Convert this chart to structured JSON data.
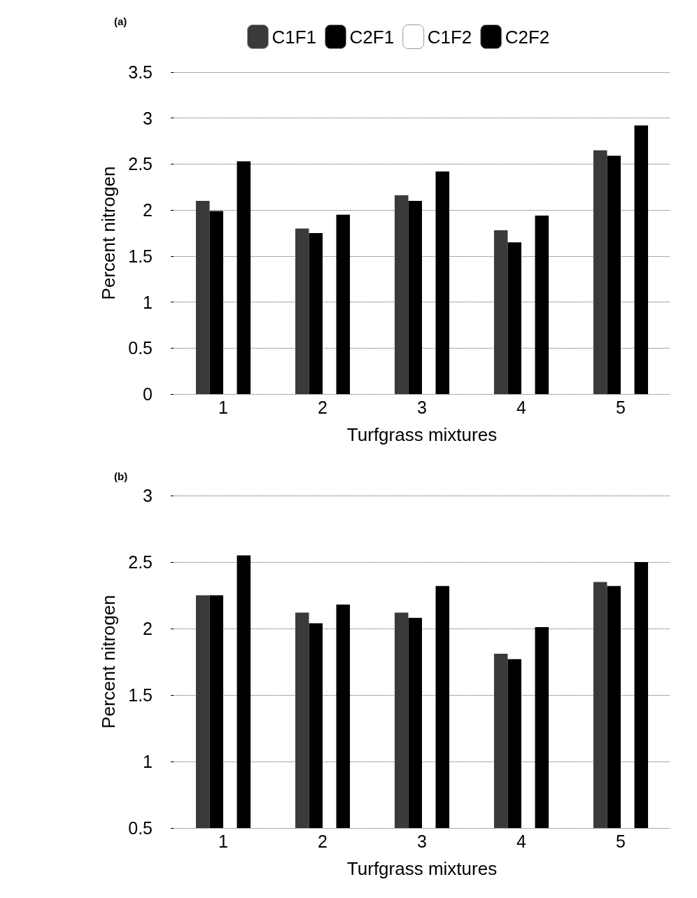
{
  "chart_data": [
    {
      "type": "bar",
      "title": "(a)",
      "xlabel": "Turfgrass mixtures",
      "ylabel": "Percent nitrogen",
      "categories": [
        "1",
        "2",
        "3",
        "4",
        "5"
      ],
      "series": [
        {
          "name": "C1F1",
          "color": "#3a3a3a",
          "values": [
            2.1,
            1.8,
            2.16,
            1.78,
            2.65
          ]
        },
        {
          "name": "C2F1",
          "color": "#000000",
          "values": [
            1.99,
            1.75,
            2.1,
            1.65,
            2.59
          ]
        },
        {
          "name": "C1F2",
          "color": "#ffffff",
          "values": [
            null,
            null,
            null,
            null,
            null
          ]
        },
        {
          "name": "C2F2",
          "color": "#000000",
          "values": [
            2.53,
            1.95,
            2.42,
            1.94,
            2.92
          ]
        }
      ],
      "ylim": [
        0,
        3.5
      ],
      "yticks": [
        0,
        0.5,
        1,
        1.5,
        2,
        2.5,
        3,
        3.5
      ],
      "grid": "y",
      "legend": "top"
    },
    {
      "type": "bar",
      "title": "(b)",
      "xlabel": "Turfgrass mixtures",
      "ylabel": "Percent nitrogen",
      "categories": [
        "1",
        "2",
        "3",
        "4",
        "5"
      ],
      "series": [
        {
          "color": "#3a3a3a",
          "values": [
            2.25,
            2.12,
            2.12,
            1.81,
            2.35
          ]
        },
        {
          "color": "#000000",
          "values": [
            2.25,
            2.04,
            2.08,
            1.77,
            2.32
          ]
        },
        {
          "color": "#ffffff",
          "values": [
            null,
            null,
            null,
            null,
            null
          ]
        },
        {
          "color": "#000000",
          "values": [
            2.55,
            2.18,
            2.32,
            2.01,
            2.5
          ]
        }
      ],
      "ylim": [
        0.5,
        3
      ],
      "yticks": [
        0.5,
        1,
        1.5,
        2,
        2.5,
        3
      ],
      "grid": "y",
      "legend": false
    }
  ]
}
